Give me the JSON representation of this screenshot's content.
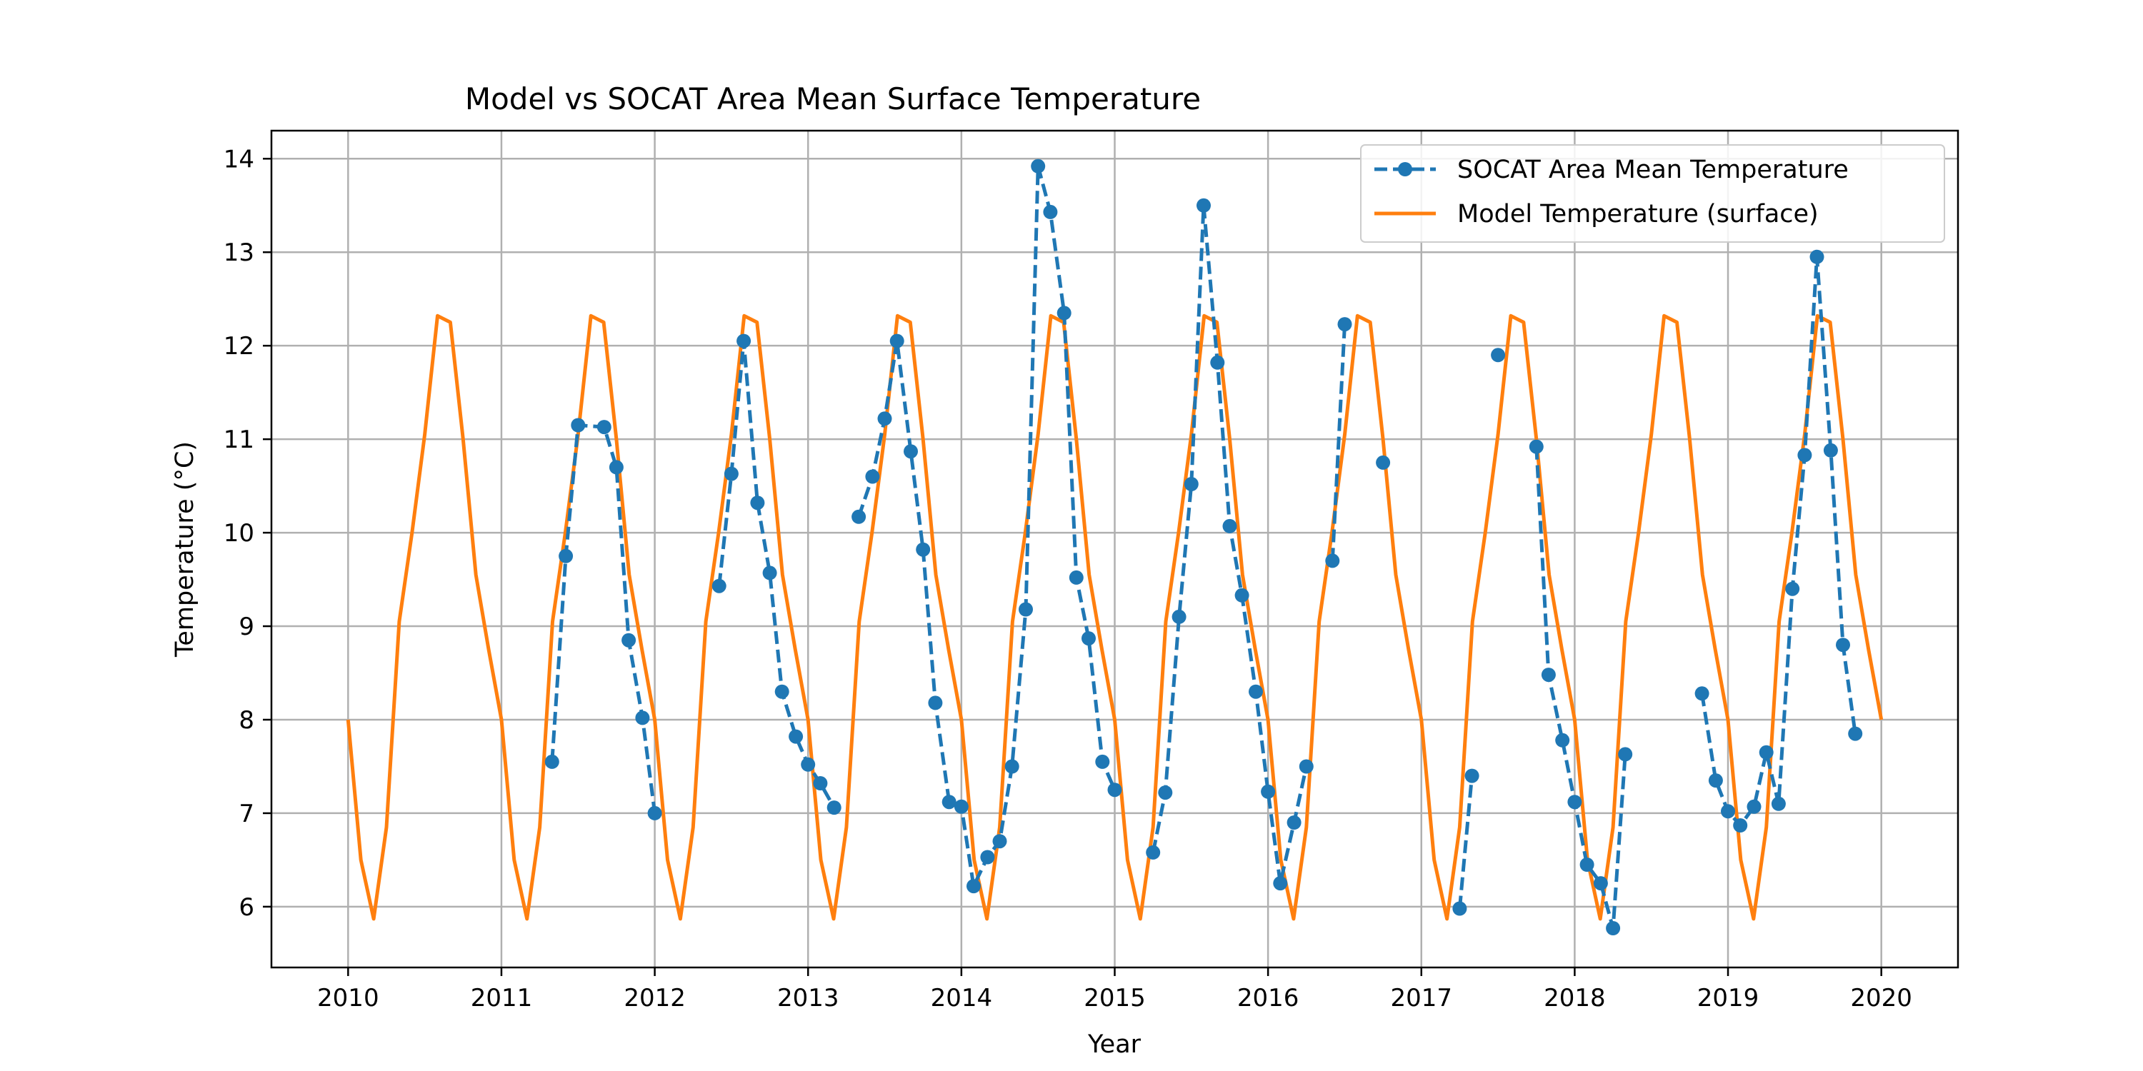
{
  "chart_data": {
    "type": "line",
    "title": "Model vs SOCAT Area Mean Surface Temperature",
    "xlabel": "Year",
    "ylabel": "Temperature (°C)",
    "xlim": [
      2009.5,
      2020.5
    ],
    "ylim": [
      5.35,
      14.3
    ],
    "xticks": [
      2010,
      2011,
      2012,
      2013,
      2014,
      2015,
      2016,
      2017,
      2018,
      2019,
      2020
    ],
    "yticks": [
      6,
      7,
      8,
      9,
      10,
      11,
      12,
      13,
      14
    ],
    "grid": true,
    "legend_position": "top-right",
    "series": [
      {
        "name": "SOCAT Area Mean Temperature",
        "color": "#1f77b4",
        "style": "dashed line with circle markers",
        "segments": [
          [
            [
              2011.33,
              7.55
            ],
            [
              2011.42,
              9.75
            ],
            [
              2011.5,
              11.15
            ],
            [
              2011.67,
              11.13
            ],
            [
              2011.75,
              10.7
            ],
            [
              2011.83,
              8.85
            ],
            [
              2011.92,
              8.02
            ],
            [
              2012.0,
              7.0
            ]
          ],
          [
            [
              2012.42,
              9.43
            ],
            [
              2012.5,
              10.63
            ],
            [
              2012.58,
              12.05
            ],
            [
              2012.67,
              10.32
            ],
            [
              2012.75,
              9.57
            ],
            [
              2012.83,
              8.3
            ],
            [
              2012.92,
              7.82
            ],
            [
              2013.0,
              7.52
            ],
            [
              2013.08,
              7.32
            ],
            [
              2013.17,
              7.06
            ]
          ],
          [
            [
              2013.33,
              10.17
            ],
            [
              2013.42,
              10.6
            ],
            [
              2013.5,
              11.22
            ],
            [
              2013.58,
              12.05
            ],
            [
              2013.67,
              10.87
            ],
            [
              2013.75,
              9.82
            ],
            [
              2013.83,
              8.18
            ],
            [
              2013.92,
              7.12
            ],
            [
              2014.0,
              7.07
            ],
            [
              2014.08,
              6.22
            ],
            [
              2014.17,
              6.53
            ],
            [
              2014.25,
              6.7
            ],
            [
              2014.33,
              7.5
            ],
            [
              2014.42,
              9.18
            ],
            [
              2014.5,
              13.92
            ],
            [
              2014.58,
              13.43
            ],
            [
              2014.67,
              12.35
            ],
            [
              2014.75,
              9.52
            ],
            [
              2014.83,
              8.87
            ],
            [
              2014.92,
              7.55
            ],
            [
              2015.0,
              7.25
            ]
          ],
          [
            [
              2015.25,
              6.58
            ],
            [
              2015.33,
              7.22
            ],
            [
              2015.42,
              9.1
            ],
            [
              2015.5,
              10.52
            ],
            [
              2015.58,
              13.5
            ],
            [
              2015.67,
              11.82
            ],
            [
              2015.75,
              10.07
            ],
            [
              2015.83,
              9.33
            ],
            [
              2015.92,
              8.3
            ],
            [
              2016.0,
              7.23
            ],
            [
              2016.08,
              6.25
            ],
            [
              2016.17,
              6.9
            ],
            [
              2016.25,
              7.5
            ]
          ],
          [
            [
              2016.42,
              9.7
            ],
            [
              2016.5,
              12.23
            ]
          ],
          [
            [
              2016.75,
              10.75
            ]
          ],
          [
            [
              2017.25,
              5.98
            ],
            [
              2017.33,
              7.4
            ]
          ],
          [
            [
              2017.5,
              11.9
            ]
          ],
          [
            [
              2017.75,
              10.92
            ],
            [
              2017.83,
              8.48
            ],
            [
              2017.92,
              7.78
            ],
            [
              2018.0,
              7.12
            ],
            [
              2018.08,
              6.45
            ],
            [
              2018.17,
              6.25
            ],
            [
              2018.25,
              5.77
            ],
            [
              2018.33,
              7.63
            ]
          ],
          [
            [
              2018.83,
              8.28
            ],
            [
              2018.92,
              7.35
            ],
            [
              2019.0,
              7.02
            ],
            [
              2019.08,
              6.87
            ],
            [
              2019.17,
              7.07
            ],
            [
              2019.25,
              7.65
            ],
            [
              2019.33,
              7.1
            ],
            [
              2019.42,
              9.4
            ],
            [
              2019.5,
              10.83
            ],
            [
              2019.58,
              12.95
            ],
            [
              2019.67,
              10.88
            ],
            [
              2019.75,
              8.8
            ],
            [
              2019.83,
              7.85
            ]
          ]
        ]
      },
      {
        "name": "Model Temperature (surface)",
        "color": "#ff7f0e",
        "style": "solid line",
        "annual_cycle": [
          8.0,
          6.5,
          5.87,
          6.85,
          9.05,
          10.0,
          11.05,
          12.32,
          12.25,
          11.0,
          9.55,
          8.75
        ],
        "x": [],
        "values": []
      }
    ]
  }
}
